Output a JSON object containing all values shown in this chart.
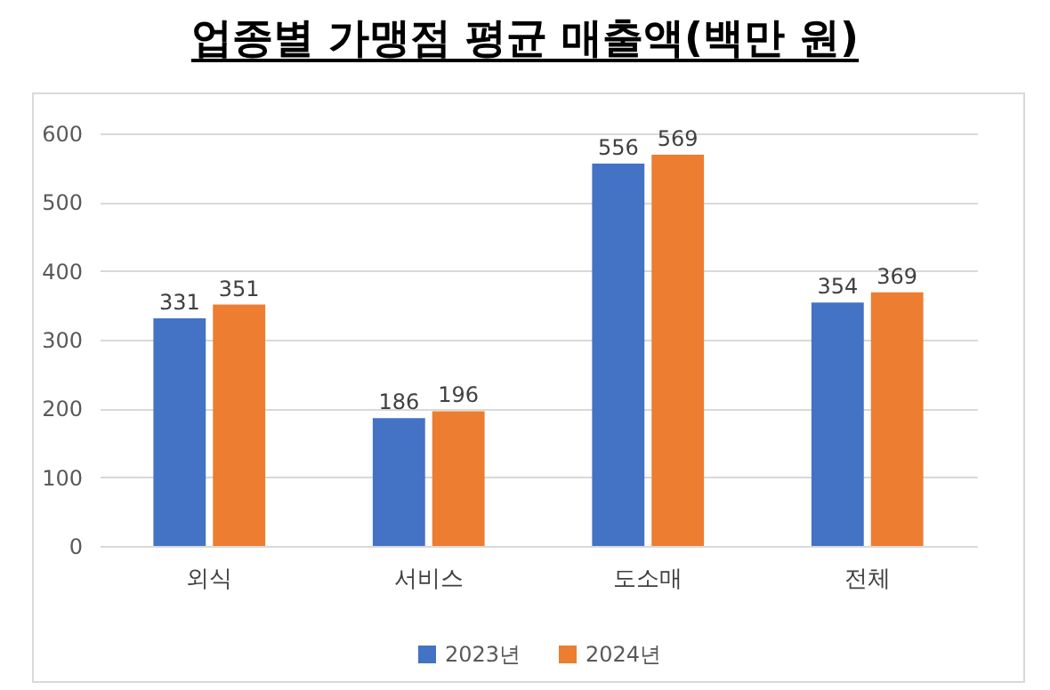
{
  "chart_data": {
    "type": "bar",
    "title": "업종별 가맹점 평균 매출액(백만 원)",
    "categories": [
      "외식",
      "서비스",
      "도소매",
      "전체"
    ],
    "series": [
      {
        "name": "2023년",
        "color": "#4472c4",
        "values": [
          331,
          186,
          556,
          354
        ]
      },
      {
        "name": "2024년",
        "color": "#ed7d31",
        "values": [
          351,
          196,
          569,
          369
        ]
      }
    ],
    "ylim": [
      0,
      600
    ],
    "yticks": [
      0,
      100,
      200,
      300,
      400,
      500,
      600
    ],
    "grid": "y",
    "legend": "bottom",
    "data_labels": true
  }
}
